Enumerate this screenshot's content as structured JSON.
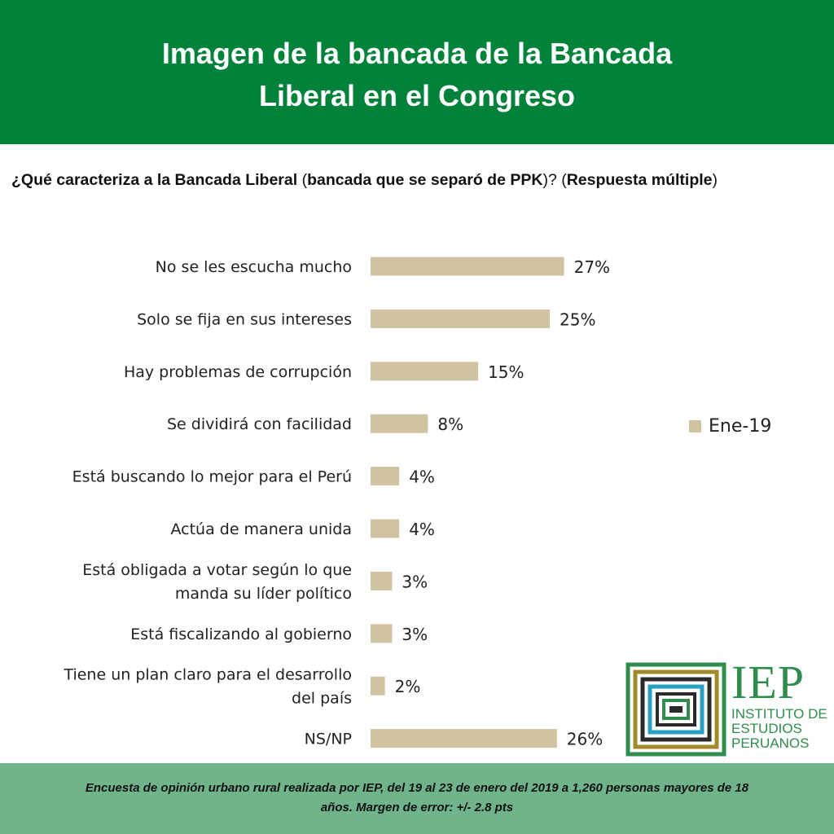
{
  "header": {
    "title_line1": "Imagen de la bancada de la Bancada",
    "title_line2": "Liberal en el Congreso"
  },
  "question": {
    "part1": "¿Qué caracteriza a la Bancada Liberal",
    "part2": " (",
    "part3": "bancada que se separó de PPK",
    "part4": ")? (",
    "part5": "Respuesta múltiple",
    "part6": ")"
  },
  "chart_data": {
    "type": "bar",
    "orientation": "horizontal",
    "categories": [
      [
        "No se les escucha mucho"
      ],
      [
        "Solo se fija en sus intereses"
      ],
      [
        "Hay problemas de corrupción"
      ],
      [
        "Se dividirá con facilidad"
      ],
      [
        "Está buscando lo mejor para el Perú"
      ],
      [
        "Actúa de manera unida"
      ],
      [
        "Está obligada a votar según lo que",
        "manda su líder político"
      ],
      [
        "Está fiscalizando al gobierno"
      ],
      [
        "Tiene un plan claro para el desarrollo",
        "del país"
      ],
      [
        "NS/NP"
      ]
    ],
    "series": [
      {
        "name": "Ene-19",
        "values": [
          27,
          25,
          15,
          8,
          4,
          4,
          3,
          3,
          2,
          26
        ],
        "labels": [
          "27%",
          "25%",
          "15%",
          "8%",
          "4%",
          "4%",
          "3%",
          "3%",
          "2%",
          "26%"
        ]
      }
    ],
    "bar_color": "#cfc3a1",
    "legend_position": "right",
    "grid": false
  },
  "legend": {
    "label": "Ene-19"
  },
  "logo": {
    "name": "IEP",
    "line1": "INSTITUTO DE",
    "line2": "ESTUDIOS",
    "line3": "PERUANOS"
  },
  "footer": {
    "line1": "Encuesta de opinión urbano rural realizada por IEP, del 19 al 23 de enero del 2019 a 1,260 personas mayores de 18",
    "line2": "años. Margen de error: +/- 2.8 pts"
  },
  "colors": {
    "header_green": "#00823b",
    "footer_green": "#70b48c",
    "bar": "#cfc3a1",
    "logo_green": "#2f8c4d"
  }
}
